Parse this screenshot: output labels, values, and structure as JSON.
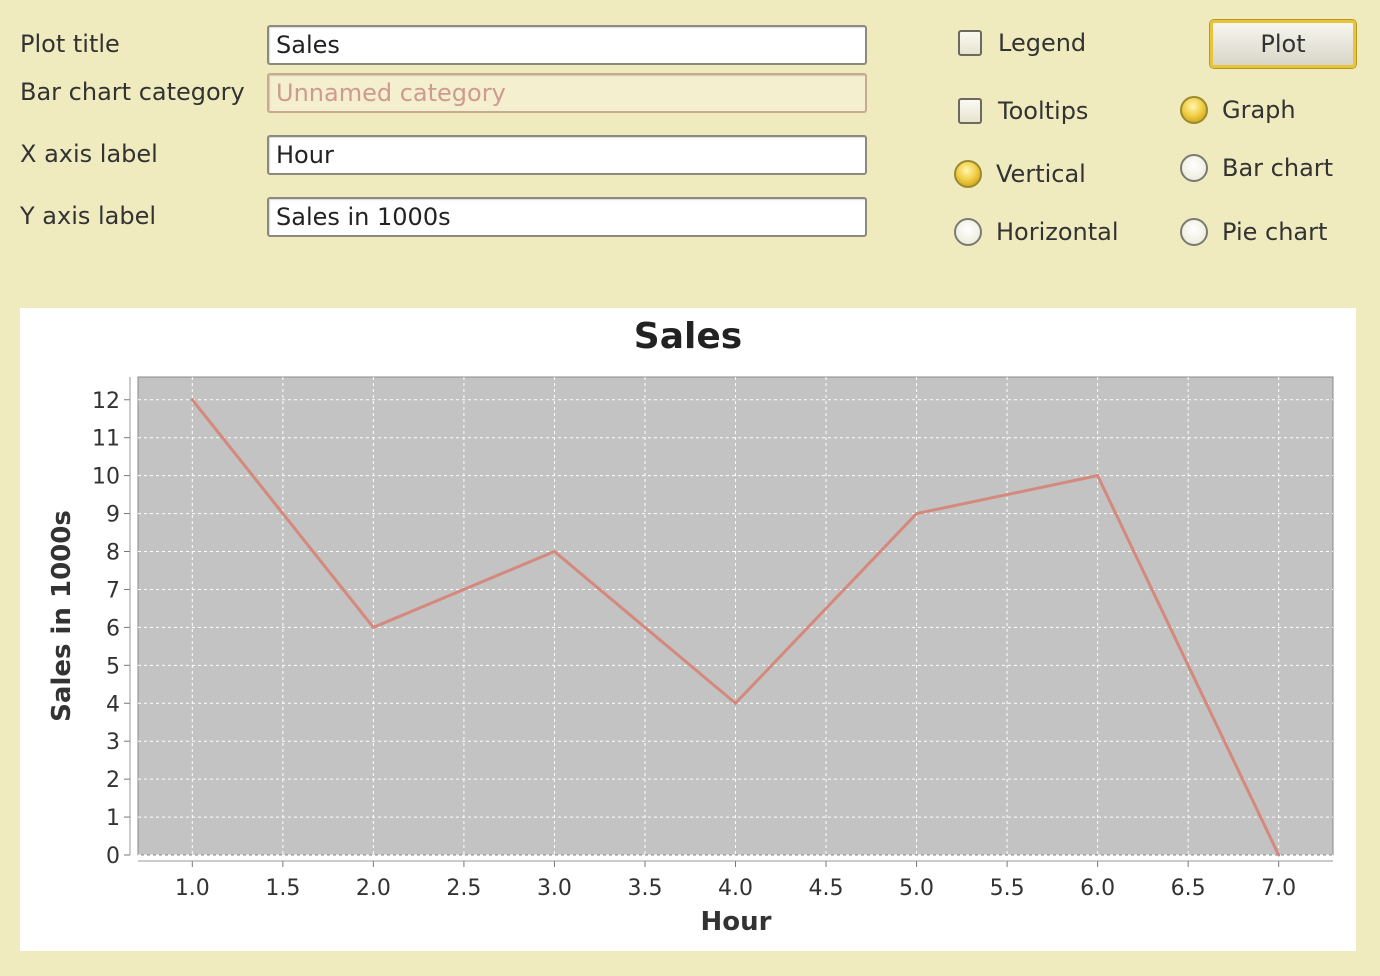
{
  "form": {
    "plot_title_label": "Plot title",
    "plot_title_value": "Sales",
    "category_label": "Bar chart category",
    "category_placeholder": "Unnamed category",
    "x_axis_label": "X axis label",
    "x_axis_value": "Hour",
    "y_axis_label": "Y axis label",
    "y_axis_value": "Sales in 1000s"
  },
  "options": {
    "legend": {
      "label": "Legend",
      "checked": false
    },
    "tooltips": {
      "label": "Tooltips",
      "checked": false
    },
    "vertical": {
      "label": "Vertical",
      "selected": true
    },
    "horizontal": {
      "label": "Horizontal",
      "selected": false
    },
    "graph": {
      "label": "Graph",
      "selected": true
    },
    "bar_chart": {
      "label": "Bar chart",
      "selected": false
    },
    "pie_chart": {
      "label": "Pie chart",
      "selected": false
    }
  },
  "plot_button": "Plot",
  "colors": {
    "background": "#efebbf",
    "plot_area": "#c3c3c3",
    "series_line": "#d4897c",
    "accent": "#e8c43a"
  },
  "chart_data": {
    "type": "line",
    "title": "Sales",
    "xlabel": "Hour",
    "ylabel": "Sales in 1000s",
    "x": [
      1.0,
      2.0,
      3.0,
      4.0,
      5.0,
      6.0,
      7.0
    ],
    "series": [
      {
        "values": [
          12,
          6,
          8,
          4,
          9,
          10,
          0
        ]
      }
    ],
    "xlim": [
      0.7,
      7.3
    ],
    "ylim": [
      0,
      12.6
    ],
    "xticks": [
      "1.0",
      "1.5",
      "2.0",
      "2.5",
      "3.0",
      "3.5",
      "4.0",
      "4.5",
      "5.0",
      "5.5",
      "6.0",
      "6.5",
      "7.0"
    ],
    "yticks": [
      "0",
      "1",
      "2",
      "3",
      "4",
      "5",
      "6",
      "7",
      "8",
      "9",
      "10",
      "11",
      "12"
    ],
    "grid": true,
    "legend": false
  }
}
